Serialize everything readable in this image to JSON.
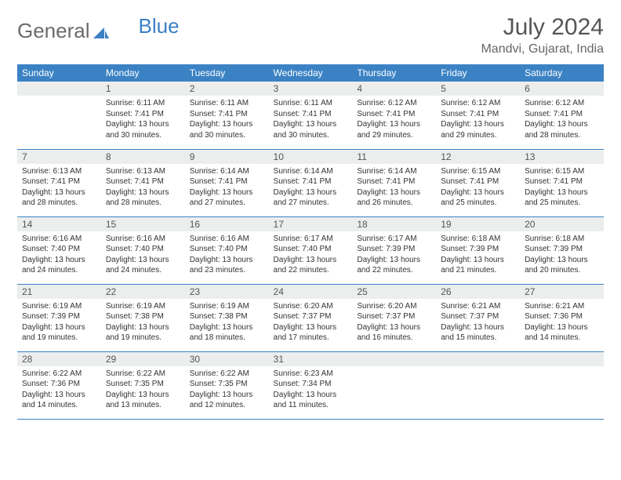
{
  "logo": {
    "part1": "General",
    "part2": "Blue"
  },
  "title": "July 2024",
  "location": "Mandvi, Gujarat, India",
  "colors": {
    "header_bg": "#3b82c4",
    "header_text": "#ffffff",
    "daynum_bg": "#eceeee",
    "row_border": "#3b82c4",
    "logo_gray": "#6b6b6b",
    "logo_blue": "#3b7fc4"
  },
  "weekdays": [
    "Sunday",
    "Monday",
    "Tuesday",
    "Wednesday",
    "Thursday",
    "Friday",
    "Saturday"
  ],
  "start_offset": 1,
  "days": [
    {
      "n": 1,
      "sr": "6:11 AM",
      "ss": "7:41 PM",
      "dl": "13 hours and 30 minutes."
    },
    {
      "n": 2,
      "sr": "6:11 AM",
      "ss": "7:41 PM",
      "dl": "13 hours and 30 minutes."
    },
    {
      "n": 3,
      "sr": "6:11 AM",
      "ss": "7:41 PM",
      "dl": "13 hours and 30 minutes."
    },
    {
      "n": 4,
      "sr": "6:12 AM",
      "ss": "7:41 PM",
      "dl": "13 hours and 29 minutes."
    },
    {
      "n": 5,
      "sr": "6:12 AM",
      "ss": "7:41 PM",
      "dl": "13 hours and 29 minutes."
    },
    {
      "n": 6,
      "sr": "6:12 AM",
      "ss": "7:41 PM",
      "dl": "13 hours and 28 minutes."
    },
    {
      "n": 7,
      "sr": "6:13 AM",
      "ss": "7:41 PM",
      "dl": "13 hours and 28 minutes."
    },
    {
      "n": 8,
      "sr": "6:13 AM",
      "ss": "7:41 PM",
      "dl": "13 hours and 28 minutes."
    },
    {
      "n": 9,
      "sr": "6:14 AM",
      "ss": "7:41 PM",
      "dl": "13 hours and 27 minutes."
    },
    {
      "n": 10,
      "sr": "6:14 AM",
      "ss": "7:41 PM",
      "dl": "13 hours and 27 minutes."
    },
    {
      "n": 11,
      "sr": "6:14 AM",
      "ss": "7:41 PM",
      "dl": "13 hours and 26 minutes."
    },
    {
      "n": 12,
      "sr": "6:15 AM",
      "ss": "7:41 PM",
      "dl": "13 hours and 25 minutes."
    },
    {
      "n": 13,
      "sr": "6:15 AM",
      "ss": "7:41 PM",
      "dl": "13 hours and 25 minutes."
    },
    {
      "n": 14,
      "sr": "6:16 AM",
      "ss": "7:40 PM",
      "dl": "13 hours and 24 minutes."
    },
    {
      "n": 15,
      "sr": "6:16 AM",
      "ss": "7:40 PM",
      "dl": "13 hours and 24 minutes."
    },
    {
      "n": 16,
      "sr": "6:16 AM",
      "ss": "7:40 PM",
      "dl": "13 hours and 23 minutes."
    },
    {
      "n": 17,
      "sr": "6:17 AM",
      "ss": "7:40 PM",
      "dl": "13 hours and 22 minutes."
    },
    {
      "n": 18,
      "sr": "6:17 AM",
      "ss": "7:39 PM",
      "dl": "13 hours and 22 minutes."
    },
    {
      "n": 19,
      "sr": "6:18 AM",
      "ss": "7:39 PM",
      "dl": "13 hours and 21 minutes."
    },
    {
      "n": 20,
      "sr": "6:18 AM",
      "ss": "7:39 PM",
      "dl": "13 hours and 20 minutes."
    },
    {
      "n": 21,
      "sr": "6:19 AM",
      "ss": "7:39 PM",
      "dl": "13 hours and 19 minutes."
    },
    {
      "n": 22,
      "sr": "6:19 AM",
      "ss": "7:38 PM",
      "dl": "13 hours and 19 minutes."
    },
    {
      "n": 23,
      "sr": "6:19 AM",
      "ss": "7:38 PM",
      "dl": "13 hours and 18 minutes."
    },
    {
      "n": 24,
      "sr": "6:20 AM",
      "ss": "7:37 PM",
      "dl": "13 hours and 17 minutes."
    },
    {
      "n": 25,
      "sr": "6:20 AM",
      "ss": "7:37 PM",
      "dl": "13 hours and 16 minutes."
    },
    {
      "n": 26,
      "sr": "6:21 AM",
      "ss": "7:37 PM",
      "dl": "13 hours and 15 minutes."
    },
    {
      "n": 27,
      "sr": "6:21 AM",
      "ss": "7:36 PM",
      "dl": "13 hours and 14 minutes."
    },
    {
      "n": 28,
      "sr": "6:22 AM",
      "ss": "7:36 PM",
      "dl": "13 hours and 14 minutes."
    },
    {
      "n": 29,
      "sr": "6:22 AM",
      "ss": "7:35 PM",
      "dl": "13 hours and 13 minutes."
    },
    {
      "n": 30,
      "sr": "6:22 AM",
      "ss": "7:35 PM",
      "dl": "13 hours and 12 minutes."
    },
    {
      "n": 31,
      "sr": "6:23 AM",
      "ss": "7:34 PM",
      "dl": "13 hours and 11 minutes."
    }
  ],
  "labels": {
    "sunrise": "Sunrise:",
    "sunset": "Sunset:",
    "daylight": "Daylight:"
  }
}
